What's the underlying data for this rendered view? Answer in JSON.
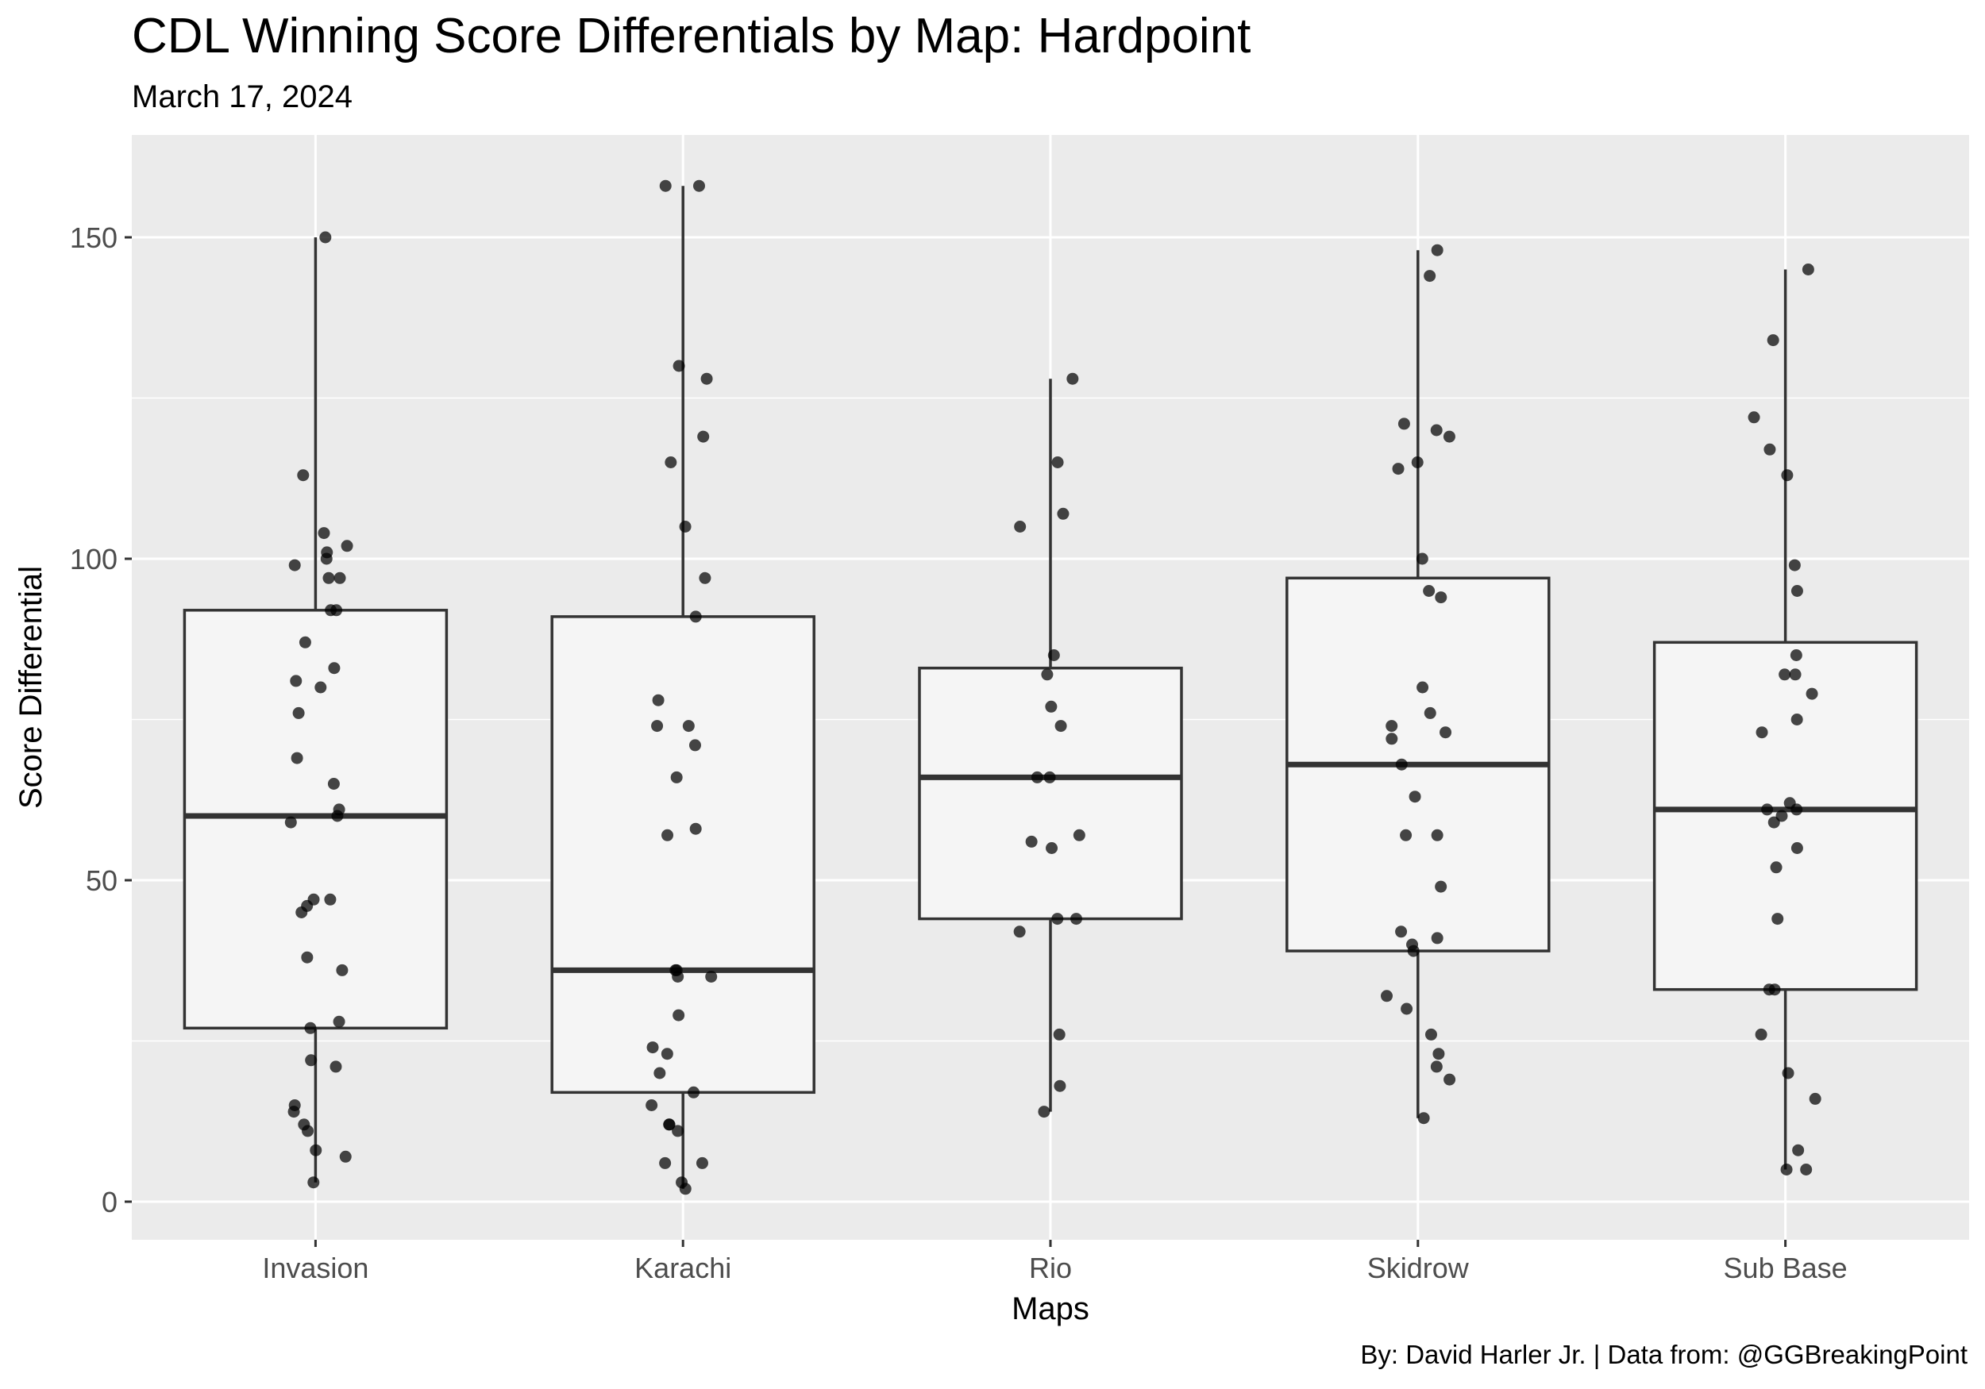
{
  "chart_data": {
    "type": "box",
    "title": "CDL Winning Score Differentials by Map: Hardpoint",
    "subtitle": "March 17, 2024",
    "caption": "By: David Harler Jr. | Data from: @GGBreakingPoint",
    "xlabel": "Maps",
    "ylabel": "Score Differential",
    "ylim": [
      -6,
      165
    ],
    "yticks": [
      0,
      50,
      100,
      150
    ],
    "grid": true,
    "categories": [
      "Invasion",
      "Karachi",
      "Rio",
      "Skidrow",
      "Sub Base"
    ],
    "boxes": [
      {
        "category": "Invasion",
        "whisker_low": 3,
        "q1": 27,
        "median": 60,
        "q3": 92,
        "whisker_high": 150
      },
      {
        "category": "Karachi",
        "whisker_low": 2,
        "q1": 17,
        "median": 36,
        "q3": 91,
        "whisker_high": 158
      },
      {
        "category": "Rio",
        "whisker_low": 14,
        "q1": 44,
        "median": 66,
        "q3": 83,
        "whisker_high": 128
      },
      {
        "category": "Skidrow",
        "whisker_low": 13,
        "q1": 39,
        "median": 68,
        "q3": 97,
        "whisker_high": 148
      },
      {
        "category": "Sub Base",
        "whisker_low": 5,
        "q1": 33,
        "median": 61,
        "q3": 87,
        "whisker_high": 145
      }
    ],
    "points": [
      {
        "category": "Invasion",
        "values": [
          150,
          113,
          104,
          102,
          101,
          100,
          99,
          97,
          97,
          92,
          92,
          87,
          83,
          81,
          80,
          76,
          69,
          65,
          61,
          60,
          59,
          47,
          47,
          46,
          45,
          38,
          36,
          28,
          27,
          22,
          21,
          15,
          14,
          12,
          11,
          8,
          7,
          3
        ]
      },
      {
        "category": "Karachi",
        "values": [
          158,
          158,
          130,
          128,
          119,
          115,
          105,
          97,
          91,
          78,
          74,
          74,
          71,
          66,
          58,
          57,
          36,
          36,
          35,
          35,
          29,
          24,
          23,
          20,
          17,
          15,
          12,
          12,
          11,
          6,
          6,
          3,
          2
        ]
      },
      {
        "category": "Rio",
        "values": [
          128,
          115,
          107,
          105,
          85,
          82,
          77,
          74,
          66,
          66,
          57,
          56,
          55,
          44,
          44,
          42,
          26,
          18,
          14
        ]
      },
      {
        "category": "Skidrow",
        "values": [
          148,
          144,
          121,
          120,
          119,
          115,
          114,
          100,
          95,
          94,
          80,
          76,
          74,
          73,
          72,
          68,
          63,
          57,
          57,
          49,
          42,
          41,
          40,
          39,
          32,
          30,
          26,
          23,
          21,
          19,
          13
        ]
      },
      {
        "category": "Sub Base",
        "values": [
          145,
          134,
          122,
          117,
          113,
          99,
          95,
          85,
          82,
          82,
          79,
          75,
          73,
          62,
          61,
          61,
          60,
          59,
          55,
          52,
          44,
          33,
          33,
          26,
          20,
          16,
          8,
          5,
          5
        ]
      }
    ],
    "colors": {
      "panel_background": "#ebebeb",
      "grid": "#ffffff",
      "box_fill": "#f5f5f5",
      "box_line": "#333333",
      "point": "#000000"
    }
  }
}
